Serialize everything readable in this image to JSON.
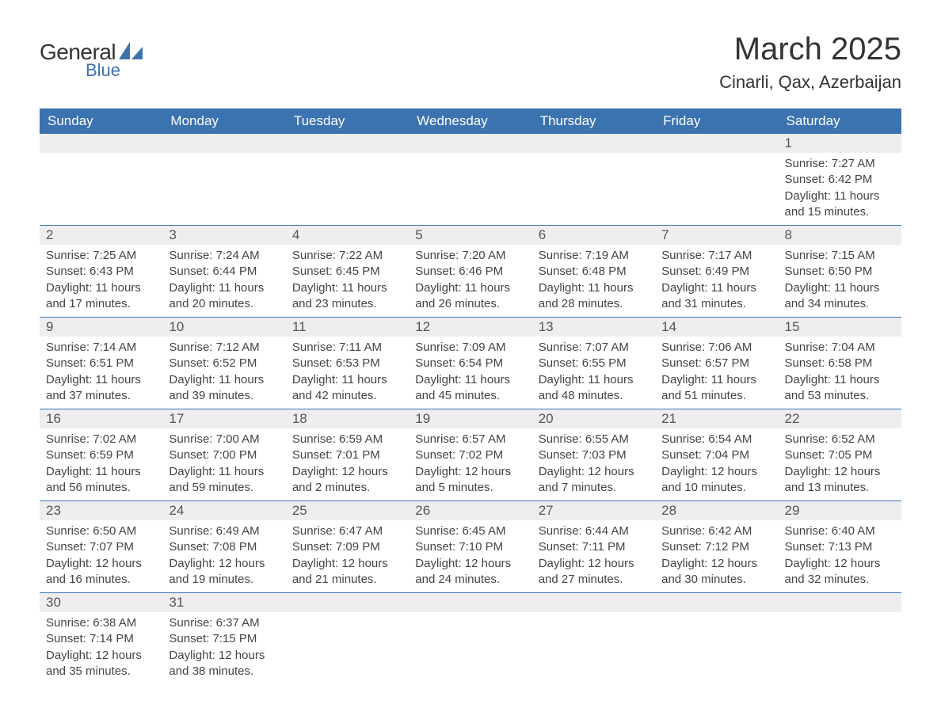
{
  "logo": {
    "text_general": "General",
    "text_blue": "Blue",
    "shape_color": "#3b72b0"
  },
  "title": "March 2025",
  "location": "Cinarli, Qax, Azerbaijan",
  "colors": {
    "header_bg": "#3b72b0",
    "header_text": "#ffffff",
    "daynum_bg": "#eeeeee",
    "daynum_text": "#555555",
    "body_text": "#444444",
    "border": "#3b72b0",
    "page_bg": "#ffffff"
  },
  "typography": {
    "title_fontsize": 40,
    "location_fontsize": 22,
    "dayheader_fontsize": 17,
    "daynum_fontsize": 17,
    "content_fontsize": 15,
    "font_family": "Arial"
  },
  "day_headers": [
    "Sunday",
    "Monday",
    "Tuesday",
    "Wednesday",
    "Thursday",
    "Friday",
    "Saturday"
  ],
  "weeks": [
    [
      null,
      null,
      null,
      null,
      null,
      null,
      {
        "n": "1",
        "sr": "Sunrise: 7:27 AM",
        "ss": "Sunset: 6:42 PM",
        "d1": "Daylight: 11 hours",
        "d2": "and 15 minutes."
      }
    ],
    [
      {
        "n": "2",
        "sr": "Sunrise: 7:25 AM",
        "ss": "Sunset: 6:43 PM",
        "d1": "Daylight: 11 hours",
        "d2": "and 17 minutes."
      },
      {
        "n": "3",
        "sr": "Sunrise: 7:24 AM",
        "ss": "Sunset: 6:44 PM",
        "d1": "Daylight: 11 hours",
        "d2": "and 20 minutes."
      },
      {
        "n": "4",
        "sr": "Sunrise: 7:22 AM",
        "ss": "Sunset: 6:45 PM",
        "d1": "Daylight: 11 hours",
        "d2": "and 23 minutes."
      },
      {
        "n": "5",
        "sr": "Sunrise: 7:20 AM",
        "ss": "Sunset: 6:46 PM",
        "d1": "Daylight: 11 hours",
        "d2": "and 26 minutes."
      },
      {
        "n": "6",
        "sr": "Sunrise: 7:19 AM",
        "ss": "Sunset: 6:48 PM",
        "d1": "Daylight: 11 hours",
        "d2": "and 28 minutes."
      },
      {
        "n": "7",
        "sr": "Sunrise: 7:17 AM",
        "ss": "Sunset: 6:49 PM",
        "d1": "Daylight: 11 hours",
        "d2": "and 31 minutes."
      },
      {
        "n": "8",
        "sr": "Sunrise: 7:15 AM",
        "ss": "Sunset: 6:50 PM",
        "d1": "Daylight: 11 hours",
        "d2": "and 34 minutes."
      }
    ],
    [
      {
        "n": "9",
        "sr": "Sunrise: 7:14 AM",
        "ss": "Sunset: 6:51 PM",
        "d1": "Daylight: 11 hours",
        "d2": "and 37 minutes."
      },
      {
        "n": "10",
        "sr": "Sunrise: 7:12 AM",
        "ss": "Sunset: 6:52 PM",
        "d1": "Daylight: 11 hours",
        "d2": "and 39 minutes."
      },
      {
        "n": "11",
        "sr": "Sunrise: 7:11 AM",
        "ss": "Sunset: 6:53 PM",
        "d1": "Daylight: 11 hours",
        "d2": "and 42 minutes."
      },
      {
        "n": "12",
        "sr": "Sunrise: 7:09 AM",
        "ss": "Sunset: 6:54 PM",
        "d1": "Daylight: 11 hours",
        "d2": "and 45 minutes."
      },
      {
        "n": "13",
        "sr": "Sunrise: 7:07 AM",
        "ss": "Sunset: 6:55 PM",
        "d1": "Daylight: 11 hours",
        "d2": "and 48 minutes."
      },
      {
        "n": "14",
        "sr": "Sunrise: 7:06 AM",
        "ss": "Sunset: 6:57 PM",
        "d1": "Daylight: 11 hours",
        "d2": "and 51 minutes."
      },
      {
        "n": "15",
        "sr": "Sunrise: 7:04 AM",
        "ss": "Sunset: 6:58 PM",
        "d1": "Daylight: 11 hours",
        "d2": "and 53 minutes."
      }
    ],
    [
      {
        "n": "16",
        "sr": "Sunrise: 7:02 AM",
        "ss": "Sunset: 6:59 PM",
        "d1": "Daylight: 11 hours",
        "d2": "and 56 minutes."
      },
      {
        "n": "17",
        "sr": "Sunrise: 7:00 AM",
        "ss": "Sunset: 7:00 PM",
        "d1": "Daylight: 11 hours",
        "d2": "and 59 minutes."
      },
      {
        "n": "18",
        "sr": "Sunrise: 6:59 AM",
        "ss": "Sunset: 7:01 PM",
        "d1": "Daylight: 12 hours",
        "d2": "and 2 minutes."
      },
      {
        "n": "19",
        "sr": "Sunrise: 6:57 AM",
        "ss": "Sunset: 7:02 PM",
        "d1": "Daylight: 12 hours",
        "d2": "and 5 minutes."
      },
      {
        "n": "20",
        "sr": "Sunrise: 6:55 AM",
        "ss": "Sunset: 7:03 PM",
        "d1": "Daylight: 12 hours",
        "d2": "and 7 minutes."
      },
      {
        "n": "21",
        "sr": "Sunrise: 6:54 AM",
        "ss": "Sunset: 7:04 PM",
        "d1": "Daylight: 12 hours",
        "d2": "and 10 minutes."
      },
      {
        "n": "22",
        "sr": "Sunrise: 6:52 AM",
        "ss": "Sunset: 7:05 PM",
        "d1": "Daylight: 12 hours",
        "d2": "and 13 minutes."
      }
    ],
    [
      {
        "n": "23",
        "sr": "Sunrise: 6:50 AM",
        "ss": "Sunset: 7:07 PM",
        "d1": "Daylight: 12 hours",
        "d2": "and 16 minutes."
      },
      {
        "n": "24",
        "sr": "Sunrise: 6:49 AM",
        "ss": "Sunset: 7:08 PM",
        "d1": "Daylight: 12 hours",
        "d2": "and 19 minutes."
      },
      {
        "n": "25",
        "sr": "Sunrise: 6:47 AM",
        "ss": "Sunset: 7:09 PM",
        "d1": "Daylight: 12 hours",
        "d2": "and 21 minutes."
      },
      {
        "n": "26",
        "sr": "Sunrise: 6:45 AM",
        "ss": "Sunset: 7:10 PM",
        "d1": "Daylight: 12 hours",
        "d2": "and 24 minutes."
      },
      {
        "n": "27",
        "sr": "Sunrise: 6:44 AM",
        "ss": "Sunset: 7:11 PM",
        "d1": "Daylight: 12 hours",
        "d2": "and 27 minutes."
      },
      {
        "n": "28",
        "sr": "Sunrise: 6:42 AM",
        "ss": "Sunset: 7:12 PM",
        "d1": "Daylight: 12 hours",
        "d2": "and 30 minutes."
      },
      {
        "n": "29",
        "sr": "Sunrise: 6:40 AM",
        "ss": "Sunset: 7:13 PM",
        "d1": "Daylight: 12 hours",
        "d2": "and 32 minutes."
      }
    ],
    [
      {
        "n": "30",
        "sr": "Sunrise: 6:38 AM",
        "ss": "Sunset: 7:14 PM",
        "d1": "Daylight: 12 hours",
        "d2": "and 35 minutes."
      },
      {
        "n": "31",
        "sr": "Sunrise: 6:37 AM",
        "ss": "Sunset: 7:15 PM",
        "d1": "Daylight: 12 hours",
        "d2": "and 38 minutes."
      },
      null,
      null,
      null,
      null,
      null
    ]
  ]
}
